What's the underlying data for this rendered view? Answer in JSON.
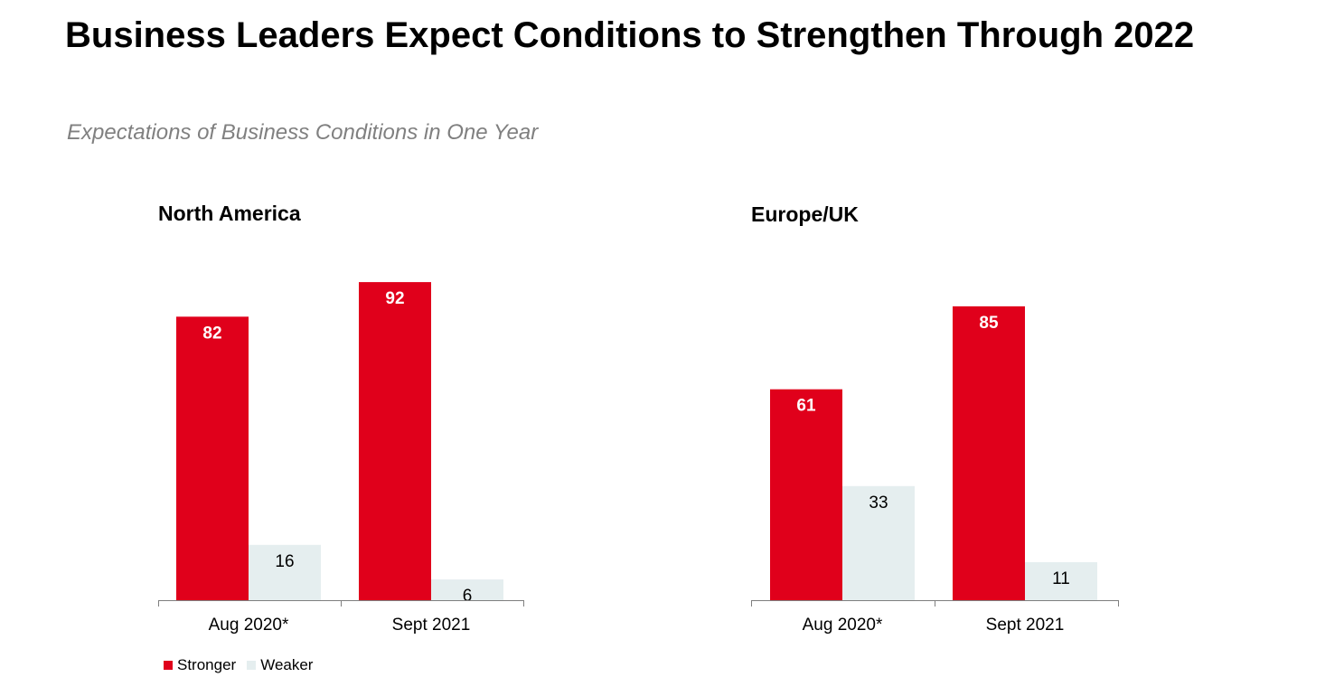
{
  "title": "Business Leaders Expect Conditions to Strengthen Through 2022",
  "subtitle": "Expectations of Business Conditions in One Year",
  "colors": {
    "stronger": "#e0001b",
    "weaker": "#e5eeef"
  },
  "legend": [
    {
      "label": "Stronger",
      "color": "#e0001b"
    },
    {
      "label": "Weaker",
      "color": "#e5eeef"
    }
  ],
  "chart_data": [
    {
      "type": "bar",
      "title": "North America",
      "categories": [
        "Aug 2020*",
        "Sept 2021"
      ],
      "series": [
        {
          "name": "Stronger",
          "values": [
            82,
            92
          ]
        },
        {
          "name": "Weaker",
          "values": [
            16,
            6
          ]
        }
      ],
      "ylim": [
        0,
        100
      ],
      "grid": false,
      "legend_position": "bottom-left"
    },
    {
      "type": "bar",
      "title": "Europe/UK",
      "categories": [
        "Aug 2020*",
        "Sept 2021"
      ],
      "series": [
        {
          "name": "Stronger",
          "values": [
            61,
            85
          ]
        },
        {
          "name": "Weaker",
          "values": [
            33,
            11
          ]
        }
      ],
      "ylim": [
        0,
        100
      ],
      "grid": false
    }
  ]
}
